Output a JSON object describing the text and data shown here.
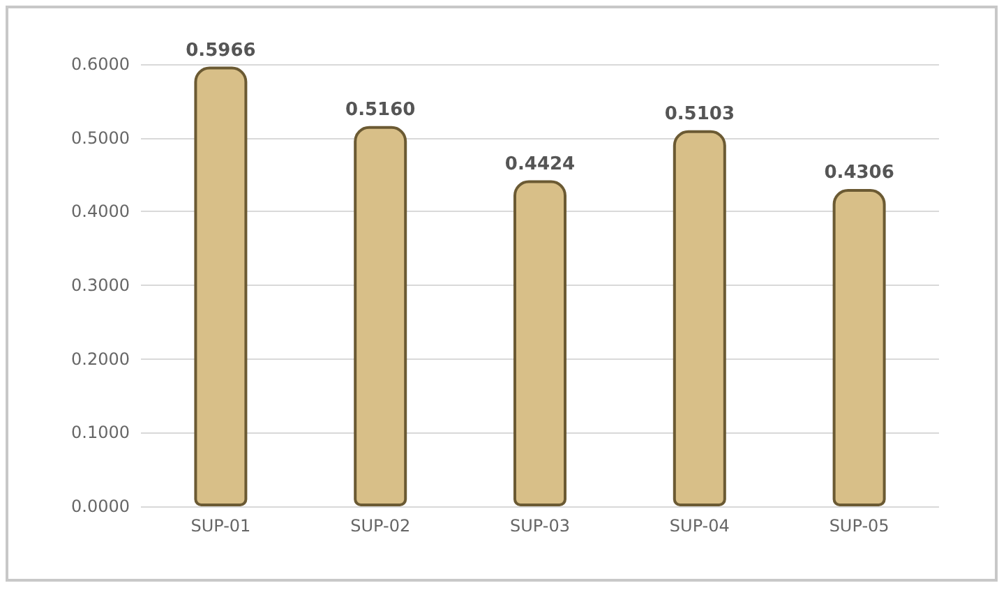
{
  "chart_data": {
    "type": "bar",
    "categories": [
      "SUP-01",
      "SUP-02",
      "SUP-03",
      "SUP-04",
      "SUP-05"
    ],
    "values": [
      0.5966,
      0.516,
      0.4424,
      0.5103,
      0.4306
    ],
    "value_labels": [
      "0.5966",
      "0.5160",
      "0.4424",
      "0.5103",
      "0.4306"
    ],
    "color": "#d8bf88",
    "ylim": [
      0,
      0.6
    ],
    "yticks": [
      {
        "value": 0,
        "label": "0.0000"
      },
      {
        "value": 0.1,
        "label": "0.1000"
      },
      {
        "value": 0.2,
        "label": "0.2000"
      },
      {
        "value": 0.3,
        "label": "0.3000"
      },
      {
        "value": 0.4,
        "label": "0.4000"
      },
      {
        "value": 0.5,
        "label": "0.5000"
      },
      {
        "value": 0.6,
        "label": "0.6000"
      }
    ],
    "grid": "y"
  }
}
